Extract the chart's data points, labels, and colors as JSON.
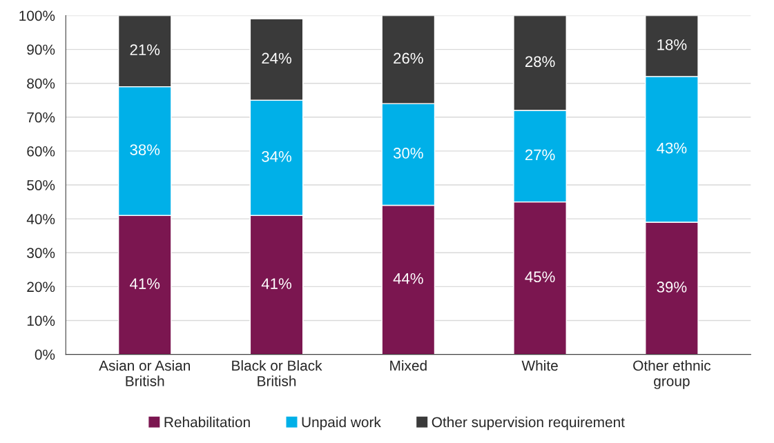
{
  "chart_data": {
    "type": "bar",
    "stacked": true,
    "categories": [
      "Asian or Asian\nBritish",
      "Black or Black\nBritish",
      "Mixed",
      "White",
      "Other ethnic\ngroup"
    ],
    "series": [
      {
        "name": "Rehabilitation",
        "color": "#7b1650",
        "values": [
          41,
          41,
          44,
          45,
          39
        ]
      },
      {
        "name": "Unpaid work",
        "color": "#00b0e8",
        "values": [
          38,
          34,
          30,
          27,
          43
        ]
      },
      {
        "name": "Other supervision requirement",
        "color": "#3a3a3a",
        "values": [
          21,
          24,
          26,
          28,
          18
        ]
      }
    ],
    "ylim": [
      0,
      100
    ],
    "yticks": [
      {
        "value": 0,
        "label": "0%"
      },
      {
        "value": 10,
        "label": "10%"
      },
      {
        "value": 20,
        "label": "20%"
      },
      {
        "value": 30,
        "label": "30%"
      },
      {
        "value": 40,
        "label": "40%"
      },
      {
        "value": 50,
        "label": "50%"
      },
      {
        "value": 60,
        "label": "60%"
      },
      {
        "value": 70,
        "label": "70%"
      },
      {
        "value": 80,
        "label": "80%"
      },
      {
        "value": 90,
        "label": "90%"
      },
      {
        "value": 100,
        "label": "100%"
      }
    ],
    "value_labels": [
      [
        "41%",
        "41%",
        "44%",
        "45%",
        "39%"
      ],
      [
        "38%",
        "34%",
        "30%",
        "27%",
        "43%"
      ],
      [
        "21%",
        "24%",
        "26%",
        "28%",
        "18%"
      ]
    ],
    "grid": "y",
    "legend": "bottom"
  }
}
